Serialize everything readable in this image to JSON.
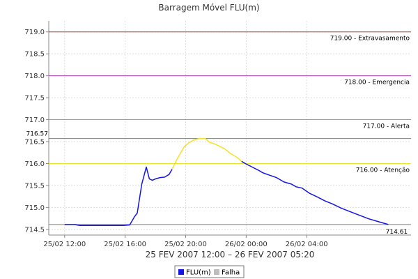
{
  "chart_data": {
    "type": "line",
    "title": "Barragem Móvel FLU(m)",
    "xlabel": "25 FEV 2007 12:00 – 26 FEV 2007 05:20",
    "ylabel": "",
    "x_ticks": [
      "25/02 12:00",
      "25/02 16:00",
      "25/02 20:00",
      "26/02 00:00",
      "26/02 04:00"
    ],
    "x_ticks_hours": [
      0,
      4,
      8,
      12,
      16
    ],
    "x_range_hours": [
      -1,
      19.5
    ],
    "y_ticks": [
      "714.5",
      "715.0",
      "715.5",
      "716.0",
      "716.5",
      "717.0",
      "717.5",
      "718.0",
      "718.5",
      "719.0"
    ],
    "ylim": [
      714.37,
      719.25
    ],
    "grid": true,
    "thresholds": [
      {
        "value": 719.0,
        "label": "719.00 - Extravasamento",
        "color": "#c0392b"
      },
      {
        "value": 718.0,
        "label": "718.00 - Emergencia",
        "color": "#b03ab0"
      },
      {
        "value": 717.0,
        "label": "717.00 - Alerta",
        "color": "#e08a2a"
      },
      {
        "value": 716.0,
        "label": "716.00 - Atenção",
        "color": "#e6e629"
      }
    ],
    "reference_lines": [
      {
        "value": 716.57,
        "label": "716.57",
        "color": "#7f7f7f"
      },
      {
        "value": 714.61,
        "label": "714.61",
        "color": "#7f7f7f"
      }
    ],
    "series": [
      {
        "name": "FLU(m)",
        "color": "#1515e6",
        "points": [
          [
            0.0,
            714.61
          ],
          [
            0.7,
            714.61
          ],
          [
            0.8,
            714.6
          ],
          [
            1.0,
            714.59
          ],
          [
            1.5,
            714.59
          ],
          [
            2.0,
            714.59
          ],
          [
            2.5,
            714.59
          ],
          [
            3.0,
            714.59
          ],
          [
            3.5,
            714.59
          ],
          [
            3.9,
            714.59
          ],
          [
            4.3,
            714.6
          ],
          [
            4.6,
            714.78
          ],
          [
            4.8,
            714.87
          ],
          [
            5.1,
            715.53
          ],
          [
            5.4,
            715.92
          ],
          [
            5.6,
            715.65
          ],
          [
            5.8,
            715.62
          ],
          [
            6.0,
            715.65
          ],
          [
            6.3,
            715.68
          ],
          [
            6.6,
            715.69
          ],
          [
            6.9,
            715.75
          ],
          [
            7.1,
            715.87
          ]
        ]
      },
      {
        "name": "",
        "color": "#f2e22c",
        "points": [
          [
            7.1,
            715.87
          ],
          [
            7.4,
            716.08
          ],
          [
            7.6,
            716.2
          ],
          [
            7.9,
            716.38
          ],
          [
            8.2,
            716.47
          ],
          [
            8.5,
            716.53
          ],
          [
            8.9,
            716.57
          ],
          [
            9.3,
            716.57
          ],
          [
            9.6,
            716.48
          ],
          [
            9.9,
            716.45
          ],
          [
            10.2,
            716.4
          ],
          [
            10.6,
            716.33
          ],
          [
            11.0,
            716.22
          ],
          [
            11.4,
            716.14
          ],
          [
            11.7,
            716.05
          ]
        ]
      },
      {
        "name": "",
        "color": "#1515e6",
        "points": [
          [
            11.7,
            716.05
          ],
          [
            12.0,
            715.99
          ],
          [
            12.4,
            715.92
          ],
          [
            12.8,
            715.85
          ],
          [
            13.1,
            715.79
          ],
          [
            13.5,
            715.74
          ],
          [
            14.0,
            715.68
          ],
          [
            14.5,
            715.58
          ],
          [
            15.0,
            715.53
          ],
          [
            15.3,
            715.47
          ],
          [
            15.7,
            715.44
          ],
          [
            16.2,
            715.32
          ],
          [
            16.7,
            715.24
          ],
          [
            17.2,
            715.15
          ],
          [
            17.7,
            715.08
          ],
          [
            18.3,
            714.98
          ],
          [
            18.9,
            714.9
          ],
          [
            19.5,
            714.82
          ],
          [
            20.1,
            714.74
          ],
          [
            20.8,
            714.67
          ],
          [
            21.4,
            714.61
          ]
        ]
      }
    ],
    "legend": {
      "placement": "bottom-center",
      "entries": [
        {
          "label": "FLU(m)",
          "color": "#1515e6"
        },
        {
          "label": "Falha",
          "color": "#bdbdbd"
        }
      ]
    }
  }
}
